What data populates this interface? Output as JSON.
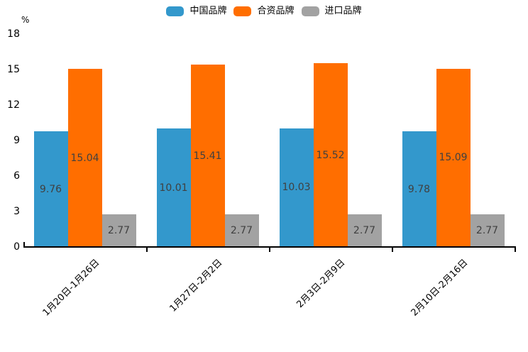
{
  "chart_data": {
    "type": "bar",
    "title": "",
    "unit_label": "%",
    "categories": [
      "1月20日-1月26日",
      "1月27日-2月2日",
      "2月3日-2月9日",
      "2月10日-2月16日"
    ],
    "series": [
      {
        "name": "中国品牌",
        "color": "#3398cc",
        "values": [
          9.76,
          10.01,
          10.03,
          9.78
        ]
      },
      {
        "name": "合资品牌",
        "color": "#ff6e00",
        "values": [
          15.04,
          15.41,
          15.52,
          15.09
        ]
      },
      {
        "name": "进口品牌",
        "color": "#a2a2a2",
        "values": [
          2.77,
          2.77,
          2.77,
          2.77
        ]
      }
    ],
    "value_labels": [
      [
        "9.76",
        "10.01",
        "10.03",
        "9.78"
      ],
      [
        "15.04",
        "15.41",
        "15.52",
        "15.09"
      ],
      [
        "2.77",
        "2.77",
        "2.77",
        "2.77"
      ]
    ],
    "ylim": [
      0,
      18
    ],
    "yticks": [
      "0",
      "3",
      "6",
      "9",
      "12",
      "15",
      "18"
    ],
    "grid": false,
    "legend_position": "top-center",
    "value_label_color": "#404040",
    "axis_color": "#000000",
    "background": "#ffffff"
  }
}
